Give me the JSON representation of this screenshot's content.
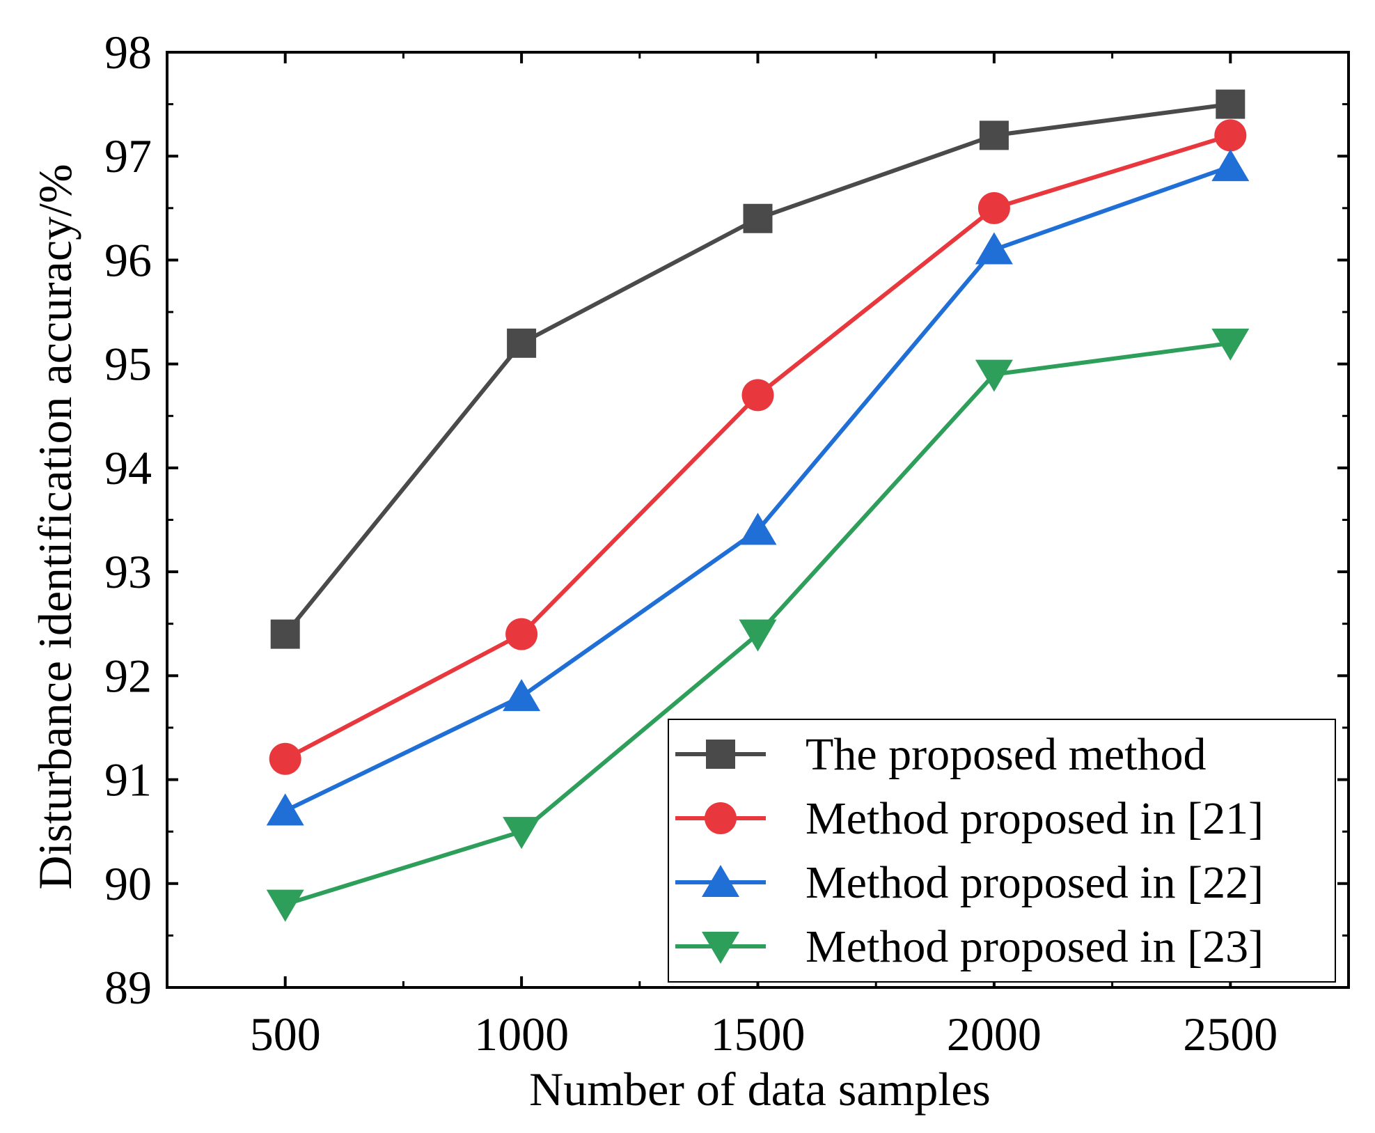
{
  "chart_data": {
    "type": "line",
    "title": "",
    "xlabel": "Number of data samples",
    "ylabel": "Disturbance identification accuracy/%",
    "x": [
      500,
      1000,
      1500,
      2000,
      2500
    ],
    "x_tick_labels": [
      "500",
      "1000",
      "1500",
      "2000",
      "2500"
    ],
    "xlim": [
      250,
      2750
    ],
    "ylim": [
      89,
      98
    ],
    "y_ticks": [
      89,
      90,
      91,
      92,
      93,
      94,
      95,
      96,
      97,
      98
    ],
    "y_tick_labels": [
      "89",
      "90",
      "91",
      "92",
      "93",
      "94",
      "95",
      "96",
      "97",
      "98"
    ],
    "grid": false,
    "legend_position": "bottom-right",
    "series": [
      {
        "name": "The proposed method",
        "values": [
          92.4,
          95.2,
          96.4,
          97.2,
          97.5
        ],
        "color": "#4a4a4a",
        "marker": "square"
      },
      {
        "name": "Method proposed in [21]",
        "values": [
          91.2,
          92.4,
          94.7,
          96.5,
          97.2
        ],
        "color": "#e8383d",
        "marker": "circle"
      },
      {
        "name": "Method proposed in [22]",
        "values": [
          90.7,
          91.8,
          93.4,
          96.1,
          96.9
        ],
        "color": "#1f6fd6",
        "marker": "triangle-up"
      },
      {
        "name": "Method proposed in [23]",
        "values": [
          89.8,
          90.5,
          92.4,
          94.9,
          95.2
        ],
        "color": "#2e9e5b",
        "marker": "triangle-down"
      }
    ]
  }
}
